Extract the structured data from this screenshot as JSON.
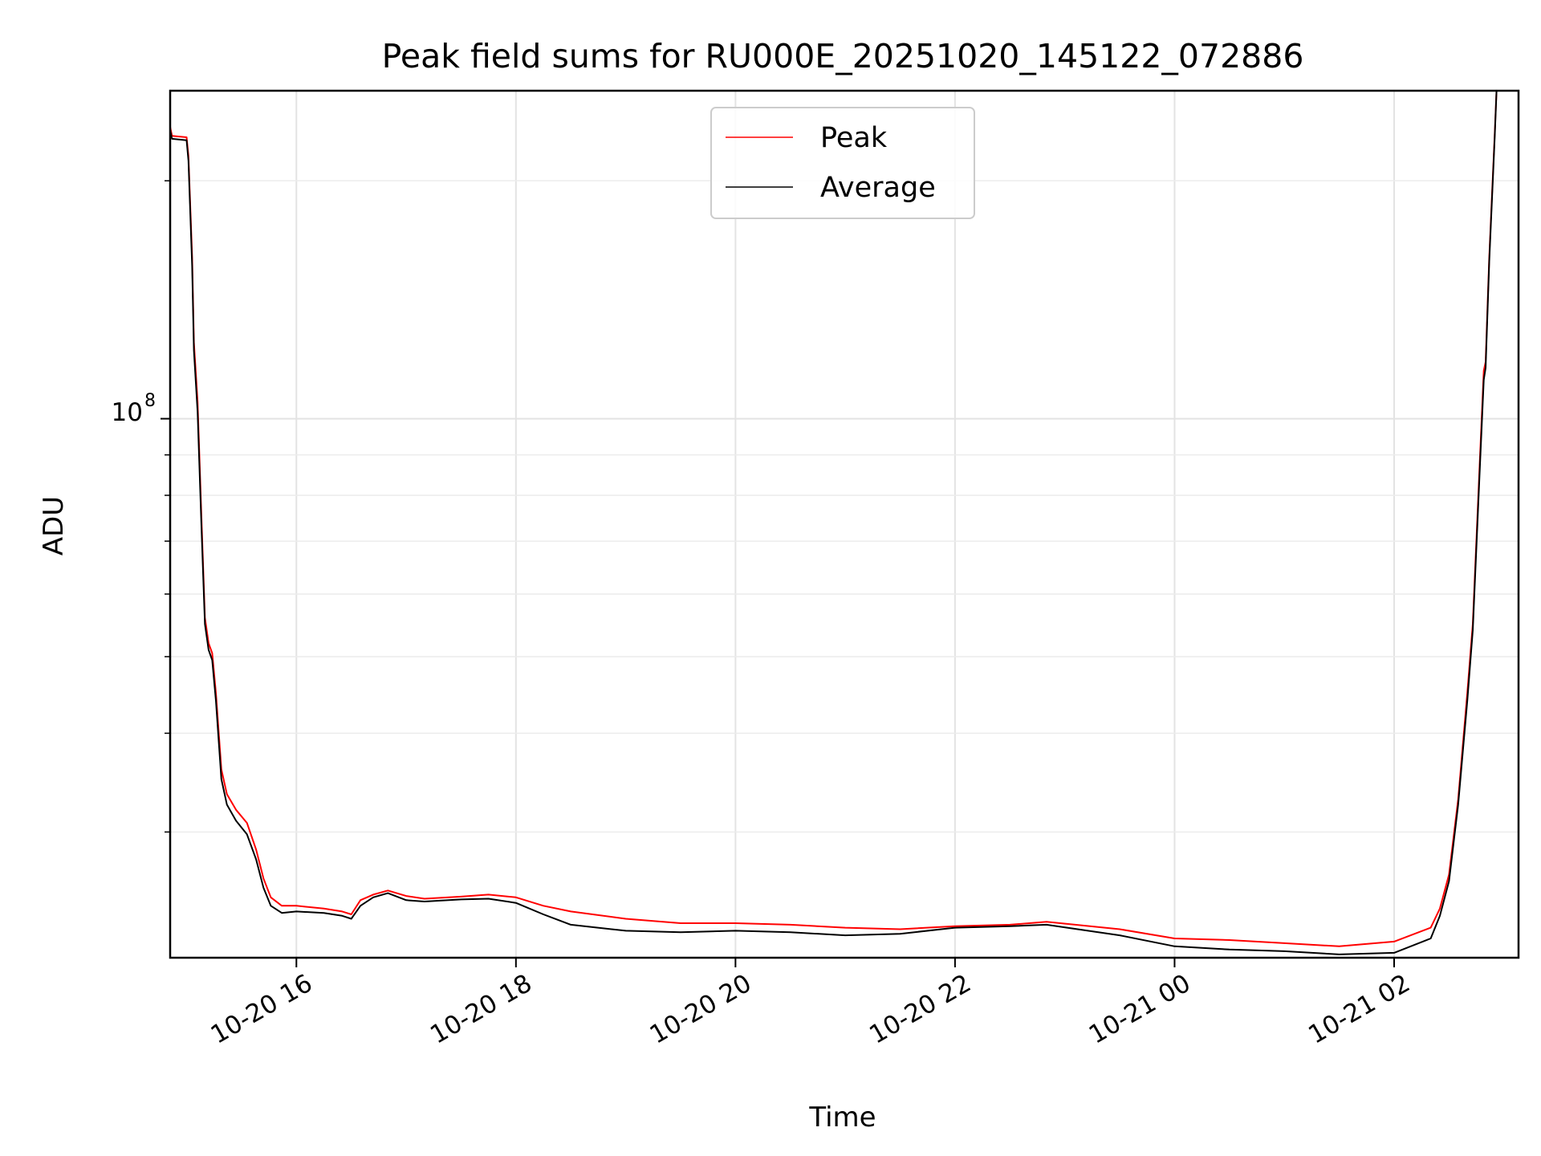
{
  "chart_data": {
    "type": "line",
    "title": "Peak field sums for RU000E_20251020_145122_072886",
    "xlabel": "Time",
    "ylabel": "ADU",
    "yscale": "log",
    "grid": true,
    "legend_placement": "upper-center",
    "xlim": [
      "2025-10-20 14:51",
      "2025-10-21 03:08"
    ],
    "ylim": [
      20800000,
      260000000
    ],
    "x_ticks": [
      {
        "label": "10-20 16",
        "value": "2025-10-20 16:00"
      },
      {
        "label": "10-20 18",
        "value": "2025-10-20 18:00"
      },
      {
        "label": "10-20 20",
        "value": "2025-10-20 20:00"
      },
      {
        "label": "10-20 22",
        "value": "2025-10-20 22:00"
      },
      {
        "label": "10-21 00",
        "value": "2025-10-21 00:00"
      },
      {
        "label": "10-21 02",
        "value": "2025-10-21 02:00"
      }
    ],
    "y_major_tick": {
      "base": "10",
      "exponent": "8",
      "value": 100000000
    },
    "y_minor_ticks": [
      30000000,
      40000000,
      50000000,
      60000000,
      70000000,
      80000000,
      90000000,
      200000000
    ],
    "series": [
      {
        "name": "Peak",
        "color": "#ff0000",
        "points": [
          [
            "2025-10-20 14:51",
            234000000
          ],
          [
            "2025-10-20 14:52",
            228000000
          ],
          [
            "2025-10-20 15:00",
            227000000
          ],
          [
            "2025-10-20 15:01",
            215000000
          ],
          [
            "2025-10-20 15:03",
            160000000
          ],
          [
            "2025-10-20 15:04",
            125000000
          ],
          [
            "2025-10-20 15:06",
            105000000
          ],
          [
            "2025-10-20 15:08",
            76000000
          ],
          [
            "2025-10-20 15:10",
            56000000
          ],
          [
            "2025-10-20 15:12",
            52000000
          ],
          [
            "2025-10-20 15:14",
            50500000
          ],
          [
            "2025-10-20 15:16",
            45000000
          ],
          [
            "2025-10-20 15:19",
            36000000
          ],
          [
            "2025-10-20 15:22",
            33500000
          ],
          [
            "2025-10-20 15:27",
            32000000
          ],
          [
            "2025-10-20 15:33",
            30800000
          ],
          [
            "2025-10-20 15:38",
            28500000
          ],
          [
            "2025-10-20 15:42",
            26200000
          ],
          [
            "2025-10-20 15:46",
            24800000
          ],
          [
            "2025-10-20 15:52",
            24200000
          ],
          [
            "2025-10-20 16:00",
            24200000
          ],
          [
            "2025-10-20 16:15",
            24000000
          ],
          [
            "2025-10-20 16:25",
            23800000
          ],
          [
            "2025-10-20 16:30",
            23600000
          ],
          [
            "2025-10-20 16:35",
            24600000
          ],
          [
            "2025-10-20 16:42",
            25000000
          ],
          [
            "2025-10-20 16:50",
            25300000
          ],
          [
            "2025-10-20 17:00",
            24900000
          ],
          [
            "2025-10-20 17:10",
            24700000
          ],
          [
            "2025-10-20 17:30",
            24850000
          ],
          [
            "2025-10-20 17:45",
            25000000
          ],
          [
            "2025-10-20 18:00",
            24800000
          ],
          [
            "2025-10-20 18:15",
            24200000
          ],
          [
            "2025-10-20 18:30",
            23800000
          ],
          [
            "2025-10-20 19:00",
            23300000
          ],
          [
            "2025-10-20 19:30",
            23000000
          ],
          [
            "2025-10-20 20:00",
            23000000
          ],
          [
            "2025-10-20 20:30",
            22900000
          ],
          [
            "2025-10-20 21:00",
            22700000
          ],
          [
            "2025-10-20 21:30",
            22600000
          ],
          [
            "2025-10-20 22:00",
            22800000
          ],
          [
            "2025-10-20 22:30",
            22900000
          ],
          [
            "2025-10-20 22:50",
            23100000
          ],
          [
            "2025-10-20 23:30",
            22600000
          ],
          [
            "2025-10-21 00:00",
            22000000
          ],
          [
            "2025-10-21 00:30",
            21900000
          ],
          [
            "2025-10-21 01:00",
            21700000
          ],
          [
            "2025-10-21 01:30",
            21500000
          ],
          [
            "2025-10-21 02:00",
            21800000
          ],
          [
            "2025-10-21 02:20",
            22700000
          ],
          [
            "2025-10-21 02:25",
            24000000
          ],
          [
            "2025-10-21 02:30",
            26500000
          ],
          [
            "2025-10-21 02:35",
            33000000
          ],
          [
            "2025-10-21 02:40",
            45000000
          ],
          [
            "2025-10-21 02:43",
            55000000
          ],
          [
            "2025-10-21 02:47",
            90000000
          ],
          [
            "2025-10-21 02:49",
            115000000
          ],
          [
            "2025-10-21 02:50",
            118000000
          ],
          [
            "2025-10-21 02:52",
            160000000
          ],
          [
            "2025-10-21 02:55",
            230000000
          ],
          [
            "2025-10-21 02:56",
            260000000
          ]
        ]
      },
      {
        "name": "Average",
        "color": "#000000",
        "points": [
          [
            "2025-10-20 14:51",
            232000000
          ],
          [
            "2025-10-20 14:52",
            226000000
          ],
          [
            "2025-10-20 15:00",
            225000000
          ],
          [
            "2025-10-20 15:01",
            212000000
          ],
          [
            "2025-10-20 15:03",
            156000000
          ],
          [
            "2025-10-20 15:04",
            122000000
          ],
          [
            "2025-10-20 15:06",
            102000000
          ],
          [
            "2025-10-20 15:08",
            74000000
          ],
          [
            "2025-10-20 15:10",
            55000000
          ],
          [
            "2025-10-20 15:12",
            51000000
          ],
          [
            "2025-10-20 15:14",
            49500000
          ],
          [
            "2025-10-20 15:16",
            44000000
          ],
          [
            "2025-10-20 15:19",
            35000000
          ],
          [
            "2025-10-20 15:22",
            32500000
          ],
          [
            "2025-10-20 15:27",
            31000000
          ],
          [
            "2025-10-20 15:33",
            29800000
          ],
          [
            "2025-10-20 15:38",
            27700000
          ],
          [
            "2025-10-20 15:42",
            25500000
          ],
          [
            "2025-10-20 15:46",
            24200000
          ],
          [
            "2025-10-20 15:52",
            23700000
          ],
          [
            "2025-10-20 16:00",
            23800000
          ],
          [
            "2025-10-20 16:15",
            23700000
          ],
          [
            "2025-10-20 16:25",
            23500000
          ],
          [
            "2025-10-20 16:30",
            23300000
          ],
          [
            "2025-10-20 16:35",
            24200000
          ],
          [
            "2025-10-20 16:42",
            24800000
          ],
          [
            "2025-10-20 16:50",
            25100000
          ],
          [
            "2025-10-20 17:00",
            24600000
          ],
          [
            "2025-10-20 17:10",
            24500000
          ],
          [
            "2025-10-20 17:30",
            24650000
          ],
          [
            "2025-10-20 17:45",
            24700000
          ],
          [
            "2025-10-20 18:00",
            24400000
          ],
          [
            "2025-10-20 18:15",
            23600000
          ],
          [
            "2025-10-20 18:30",
            22900000
          ],
          [
            "2025-10-20 19:00",
            22500000
          ],
          [
            "2025-10-20 19:30",
            22400000
          ],
          [
            "2025-10-20 20:00",
            22500000
          ],
          [
            "2025-10-20 20:30",
            22400000
          ],
          [
            "2025-10-20 21:00",
            22200000
          ],
          [
            "2025-10-20 21:30",
            22300000
          ],
          [
            "2025-10-20 22:00",
            22700000
          ],
          [
            "2025-10-20 22:30",
            22800000
          ],
          [
            "2025-10-20 22:50",
            22900000
          ],
          [
            "2025-10-20 23:30",
            22200000
          ],
          [
            "2025-10-21 00:00",
            21500000
          ],
          [
            "2025-10-21 00:30",
            21300000
          ],
          [
            "2025-10-21 01:00",
            21200000
          ],
          [
            "2025-10-21 01:30",
            21000000
          ],
          [
            "2025-10-21 02:00",
            21100000
          ],
          [
            "2025-10-21 02:20",
            22000000
          ],
          [
            "2025-10-21 02:25",
            23500000
          ],
          [
            "2025-10-21 02:30",
            26000000
          ],
          [
            "2025-10-21 02:35",
            32500000
          ],
          [
            "2025-10-21 02:40",
            44000000
          ],
          [
            "2025-10-21 02:43",
            54000000
          ],
          [
            "2025-10-21 02:47",
            88000000
          ],
          [
            "2025-10-21 02:49",
            112000000
          ],
          [
            "2025-10-21 02:50",
            116000000
          ],
          [
            "2025-10-21 02:52",
            158000000
          ],
          [
            "2025-10-21 02:55",
            228000000
          ],
          [
            "2025-10-21 02:56",
            260000000
          ]
        ]
      }
    ]
  }
}
